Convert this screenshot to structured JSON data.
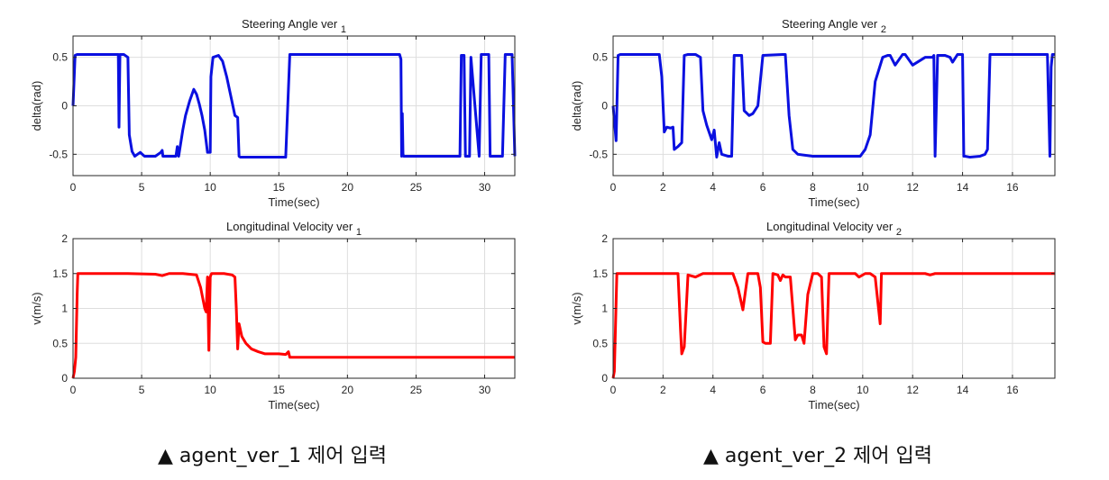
{
  "captions": [
    "▲ agent_ver_1 제어 입력",
    "▲ agent_ver_2 제어 입력"
  ],
  "chart_data": [
    {
      "type": "line",
      "title": "Steering Angle ver",
      "title_subscript": "1",
      "xlabel": "Time(sec)",
      "ylabel": "delta(rad)",
      "xlim": [
        0,
        32.2
      ],
      "ylim": [
        -0.72,
        0.72
      ],
      "xticks": [
        0,
        5,
        10,
        15,
        20,
        25,
        30
      ],
      "yticks": [
        -0.5,
        0,
        0.5
      ],
      "grid": true,
      "color": "#0a10e0",
      "series": [
        {
          "x": [
            0,
            0.15,
            0.3,
            3.3,
            3.35,
            3.42,
            3.5,
            3.7,
            4.0,
            4.1,
            4.3,
            4.5,
            4.7,
            4.9,
            5.2,
            5.6,
            6.0,
            6.4,
            6.5,
            6.55,
            7.5,
            7.6,
            7.65,
            7.7,
            8.0,
            8.2,
            8.5,
            8.8,
            9.0,
            9.2,
            9.4,
            9.6,
            9.8,
            10.0,
            10.05,
            10.2,
            10.6,
            10.9,
            11.2,
            11.5,
            11.8,
            12.0,
            12.1,
            12.2,
            15.5,
            15.65,
            15.8,
            23.8,
            23.9,
            23.95,
            24.0,
            24.05,
            24.1,
            25.0,
            28.2,
            28.3,
            28.5,
            28.6,
            28.9,
            29.0,
            29.6,
            29.75,
            30.3,
            30.4,
            31.3,
            31.5,
            32.0,
            32.2
          ],
          "y": [
            0,
            0.52,
            0.53,
            0.53,
            -0.22,
            0.53,
            0.53,
            0.53,
            0.5,
            -0.3,
            -0.47,
            -0.52,
            -0.5,
            -0.48,
            -0.52,
            -0.52,
            -0.52,
            -0.48,
            -0.46,
            -0.52,
            -0.52,
            -0.42,
            -0.48,
            -0.52,
            -0.25,
            -0.1,
            0.05,
            0.17,
            0.12,
            0.02,
            -0.1,
            -0.25,
            -0.48,
            -0.48,
            0.3,
            0.5,
            0.52,
            0.46,
            0.3,
            0.1,
            -0.1,
            -0.12,
            -0.52,
            -0.53,
            -0.53,
            0,
            0.53,
            0.53,
            0.48,
            -0.52,
            -0.08,
            -0.5,
            -0.52,
            -0.52,
            -0.52,
            0.52,
            0.52,
            -0.52,
            -0.52,
            0.5,
            -0.52,
            0.53,
            0.53,
            -0.52,
            -0.52,
            0.53,
            0.53,
            -0.52
          ]
        }
      ]
    },
    {
      "type": "line",
      "title": "Steering Angle ver",
      "title_subscript": "2",
      "xlabel": "Time(sec)",
      "ylabel": "delta(rad)",
      "xlim": [
        0,
        17.7
      ],
      "ylim": [
        -0.72,
        0.72
      ],
      "xticks": [
        0,
        2,
        4,
        6,
        8,
        10,
        12,
        14,
        16
      ],
      "yticks": [
        -0.5,
        0,
        0.5
      ],
      "grid": true,
      "color": "#0a10e0",
      "series": [
        {
          "x": [
            0,
            0.12,
            0.2,
            0.3,
            1.85,
            1.95,
            2.05,
            2.15,
            2.3,
            2.4,
            2.45,
            2.6,
            2.75,
            2.85,
            3.0,
            3.3,
            3.5,
            3.6,
            3.75,
            3.95,
            4.05,
            4.15,
            4.25,
            4.35,
            4.6,
            4.75,
            4.85,
            5.05,
            5.15,
            5.25,
            5.45,
            5.6,
            5.8,
            6.0,
            6.8,
            6.9,
            7.05,
            7.2,
            7.4,
            8.0,
            9.0,
            9.9,
            10.1,
            10.3,
            10.5,
            10.8,
            11.0,
            11.1,
            11.3,
            11.6,
            11.7,
            12.0,
            12.5,
            12.8,
            12.85,
            12.9,
            13.0,
            13.3,
            13.5,
            13.6,
            13.8,
            13.9,
            14.0,
            14.05,
            14.1,
            14.3,
            14.7,
            14.9,
            15.0,
            15.1,
            15.2,
            17.4,
            17.5,
            17.55,
            17.6,
            17.7
          ],
          "y": [
            0,
            -0.36,
            0.52,
            0.53,
            0.53,
            0.3,
            -0.27,
            -0.22,
            -0.23,
            -0.22,
            -0.45,
            -0.42,
            -0.38,
            0.52,
            0.53,
            0.53,
            0.5,
            -0.05,
            -0.2,
            -0.35,
            -0.25,
            -0.53,
            -0.38,
            -0.5,
            -0.52,
            -0.52,
            0.52,
            0.52,
            0.52,
            -0.05,
            -0.1,
            -0.08,
            0,
            0.52,
            0.53,
            0.53,
            -0.1,
            -0.45,
            -0.5,
            -0.52,
            -0.52,
            -0.52,
            -0.45,
            -0.3,
            0.25,
            0.5,
            0.52,
            0.52,
            0.42,
            0.53,
            0.53,
            0.42,
            0.5,
            0.5,
            0.52,
            -0.52,
            0.52,
            0.52,
            0.5,
            0.45,
            0.53,
            0.53,
            0.53,
            -0.52,
            -0.52,
            -0.53,
            -0.52,
            -0.5,
            -0.45,
            0.53,
            0.53,
            0.53,
            -0.52,
            0.4,
            0.53,
            0.53
          ]
        }
      ]
    },
    {
      "type": "line",
      "title": "Longitudinal Velocity ver",
      "title_subscript": "1",
      "xlabel": "Time(sec)",
      "ylabel": "v(m/s)",
      "xlim": [
        0,
        32.2
      ],
      "ylim": [
        0,
        2
      ],
      "xticks": [
        0,
        5,
        10,
        15,
        20,
        25,
        30
      ],
      "yticks": [
        0,
        0.5,
        1,
        1.5,
        2
      ],
      "grid": true,
      "color": "#ff0000",
      "series": [
        {
          "x": [
            0,
            0.1,
            0.2,
            0.3,
            0.35,
            4.0,
            6.0,
            6.5,
            7.0,
            8.0,
            9.0,
            9.3,
            9.5,
            9.6,
            9.7,
            9.8,
            9.9,
            10.0,
            10.05,
            10.1,
            10.3,
            11.0,
            11.6,
            11.8,
            11.9,
            12.0,
            12.1,
            12.3,
            12.6,
            13.0,
            13.5,
            14.0,
            15.0,
            15.5,
            15.7,
            15.8,
            20,
            25,
            30,
            32.2
          ],
          "y": [
            0,
            0.1,
            0.3,
            1.2,
            1.5,
            1.5,
            1.49,
            1.47,
            1.5,
            1.5,
            1.48,
            1.3,
            1.1,
            1.0,
            0.95,
            1.45,
            0.4,
            1.45,
            1.48,
            1.5,
            1.5,
            1.5,
            1.48,
            1.45,
            1.0,
            0.42,
            0.78,
            0.6,
            0.5,
            0.42,
            0.38,
            0.35,
            0.35,
            0.34,
            0.38,
            0.3,
            0.3,
            0.3,
            0.3,
            0.3
          ]
        }
      ]
    },
    {
      "type": "line",
      "title": "Longitudinal Velocity ver",
      "title_subscript": "2",
      "xlabel": "Time(sec)",
      "ylabel": "v(m/s)",
      "xlim": [
        0,
        17.7
      ],
      "ylim": [
        0,
        2
      ],
      "xticks": [
        0,
        2,
        4,
        6,
        8,
        10,
        12,
        14,
        16
      ],
      "yticks": [
        0,
        0.5,
        1,
        1.5,
        2
      ],
      "grid": true,
      "color": "#ff0000",
      "series": [
        {
          "x": [
            0,
            0.05,
            0.15,
            0.2,
            2.6,
            2.7,
            2.75,
            2.85,
            3.0,
            3.3,
            3.6,
            4.8,
            5.0,
            5.2,
            5.4,
            5.6,
            5.8,
            5.9,
            6.0,
            6.1,
            6.3,
            6.4,
            6.6,
            6.7,
            6.8,
            6.9,
            7.1,
            7.2,
            7.3,
            7.4,
            7.55,
            7.65,
            7.8,
            8.0,
            8.2,
            8.35,
            8.45,
            8.55,
            8.65,
            9.0,
            9.7,
            9.85,
            10.1,
            10.3,
            10.5,
            10.7,
            10.75,
            11.0,
            12.5,
            12.7,
            12.9,
            13.5,
            17.7
          ],
          "y": [
            0,
            0.1,
            1.5,
            1.5,
            1.5,
            0.7,
            0.35,
            0.45,
            1.48,
            1.45,
            1.5,
            1.5,
            1.3,
            0.98,
            1.5,
            1.5,
            1.5,
            1.3,
            0.52,
            0.5,
            0.5,
            1.5,
            1.48,
            1.4,
            1.48,
            1.45,
            1.45,
            1.0,
            0.55,
            0.62,
            0.62,
            0.5,
            1.2,
            1.5,
            1.5,
            1.45,
            0.45,
            0.35,
            1.5,
            1.5,
            1.5,
            1.45,
            1.5,
            1.5,
            1.45,
            0.78,
            1.5,
            1.5,
            1.5,
            1.48,
            1.5,
            1.5,
            1.5
          ]
        }
      ]
    }
  ]
}
